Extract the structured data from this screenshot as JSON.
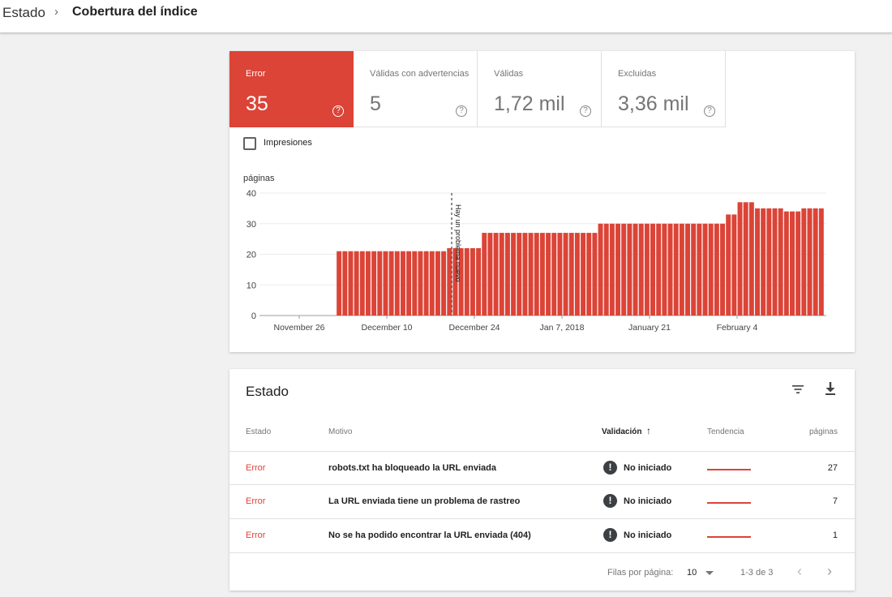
{
  "breadcrumb": {
    "root": "Estado",
    "separator": "›",
    "current": "Cobertura del índice"
  },
  "tiles": [
    {
      "label": "Error",
      "value": "35",
      "color": "#db4437",
      "active": true
    },
    {
      "label": "Válidas con advertencias",
      "value": "5",
      "active": false
    },
    {
      "label": "Válidas",
      "value": "1,72 mil",
      "active": false
    },
    {
      "label": "Excluidas",
      "value": "3,36 mil",
      "active": false
    }
  ],
  "impressions_checkbox": {
    "label": "Impresiones",
    "checked": false
  },
  "chart_data": {
    "type": "bar",
    "ylabel": "páginas",
    "ylim": [
      0,
      40
    ],
    "yticks": [
      0,
      10,
      20,
      30,
      40
    ],
    "xticks": [
      "November 26",
      "December 10",
      "December 24",
      "Jan 7, 2018",
      "January 21",
      "February 4"
    ],
    "color": "#db4437",
    "annotation": "Hay un problema nuevo",
    "values": [
      0,
      0,
      0,
      0,
      0,
      0,
      0,
      0,
      0,
      0,
      0,
      0,
      0,
      21,
      21,
      21,
      21,
      21,
      21,
      21,
      21,
      21,
      21,
      21,
      21,
      21,
      21,
      21,
      21,
      21,
      21,
      21,
      22,
      22,
      22,
      22,
      22,
      22,
      27,
      27,
      27,
      27,
      27,
      27,
      27,
      27,
      27,
      27,
      27,
      27,
      27,
      27,
      27,
      27,
      27,
      27,
      27,
      27,
      30,
      30,
      30,
      30,
      30,
      30,
      30,
      30,
      30,
      30,
      30,
      30,
      30,
      30,
      30,
      30,
      30,
      30,
      30,
      30,
      30,
      30,
      33,
      33,
      37,
      37,
      37,
      35,
      35,
      35,
      35,
      35,
      34,
      34,
      34,
      35,
      35,
      35,
      35
    ]
  },
  "table": {
    "title": "Estado",
    "icons": {
      "filter": "filter-icon",
      "download": "download-icon"
    },
    "headers": {
      "estado": "Estado",
      "motivo": "Motivo",
      "validacion": "Validación",
      "sort_arrow": "↑",
      "tendencia": "Tendencia",
      "paginas": "páginas"
    },
    "rows": [
      {
        "estado": "Error",
        "motivo": "robots.txt ha bloqueado la URL enviada",
        "status_icon": "!",
        "validacion": "No iniciado",
        "paginas": "27"
      },
      {
        "estado": "Error",
        "motivo": "La URL enviada tiene un problema de rastreo",
        "status_icon": "!",
        "validacion": "No iniciado",
        "paginas": "7"
      },
      {
        "estado": "Error",
        "motivo": "No se ha podido encontrar la URL enviada (404)",
        "status_icon": "!",
        "validacion": "No iniciado",
        "paginas": "1"
      }
    ],
    "footer": {
      "rows_label": "Filas por página:",
      "rows_value": "10",
      "range": "1-3 de 3",
      "prev": "‹",
      "next": "›"
    }
  }
}
